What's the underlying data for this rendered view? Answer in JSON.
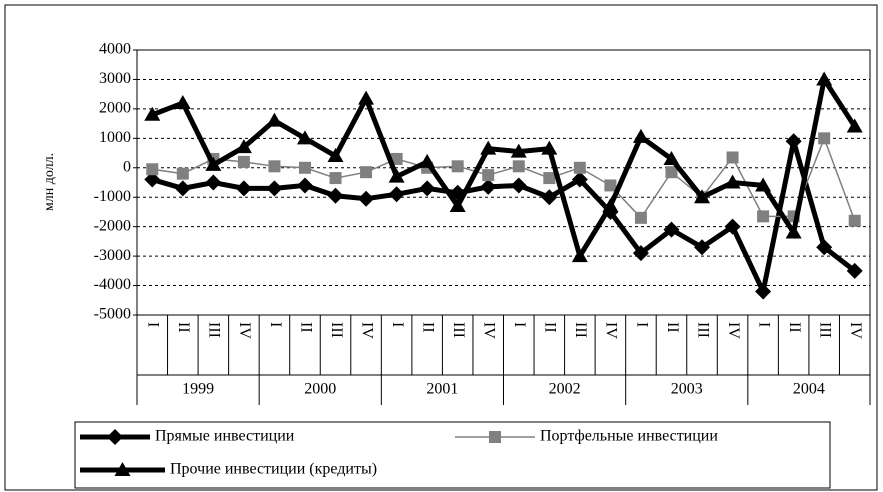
{
  "chart_data": {
    "type": "line",
    "ylabel": "млн долл.",
    "categories": [
      "I",
      "II",
      "III",
      "IV",
      "I",
      "II",
      "III",
      "IV",
      "I",
      "II",
      "III",
      "IV",
      "I",
      "II",
      "III",
      "IV",
      "I",
      "II",
      "III",
      "IV",
      "I",
      "II",
      "III",
      "IV"
    ],
    "category_groups": [
      "1999",
      "2000",
      "2001",
      "2002",
      "2003",
      "2004"
    ],
    "series": [
      {
        "name": "Прямые инвестиции",
        "color": "#000000",
        "marker": "diamond",
        "width": 5,
        "values": [
          -400,
          -700,
          -500,
          -700,
          -700,
          -600,
          -950,
          -1050,
          -900,
          -700,
          -850,
          -650,
          -600,
          -1000,
          -400,
          -1500,
          -2900,
          -2100,
          -2700,
          -2000,
          -4200,
          900,
          -2700,
          -3500
        ]
      },
      {
        "name": "Портфельные инвестиции",
        "color": "#808080",
        "marker": "square",
        "width": 1.5,
        "values": [
          -50,
          -200,
          300,
          200,
          50,
          0,
          -350,
          -150,
          300,
          0,
          50,
          -250,
          50,
          -350,
          0,
          -600,
          -1700,
          -150,
          -1000,
          350,
          -1650,
          -1650,
          1000,
          -1800
        ]
      },
      {
        "name": "Прочие инвестиции (кредиты)",
        "color": "#000000",
        "marker": "triangle",
        "width": 5,
        "values": [
          1800,
          2200,
          100,
          700,
          1600,
          1000,
          400,
          2350,
          -300,
          200,
          -1300,
          650,
          550,
          650,
          -3000,
          -1300,
          1050,
          300,
          -1000,
          -500,
          -600,
          -2200,
          3000,
          1400
        ]
      }
    ],
    "ylim": [
      -5000,
      4000
    ],
    "yticks": [
      -5000,
      -4000,
      -3000,
      -2000,
      -1000,
      0,
      1000,
      2000,
      3000,
      4000
    ],
    "grid": true
  }
}
